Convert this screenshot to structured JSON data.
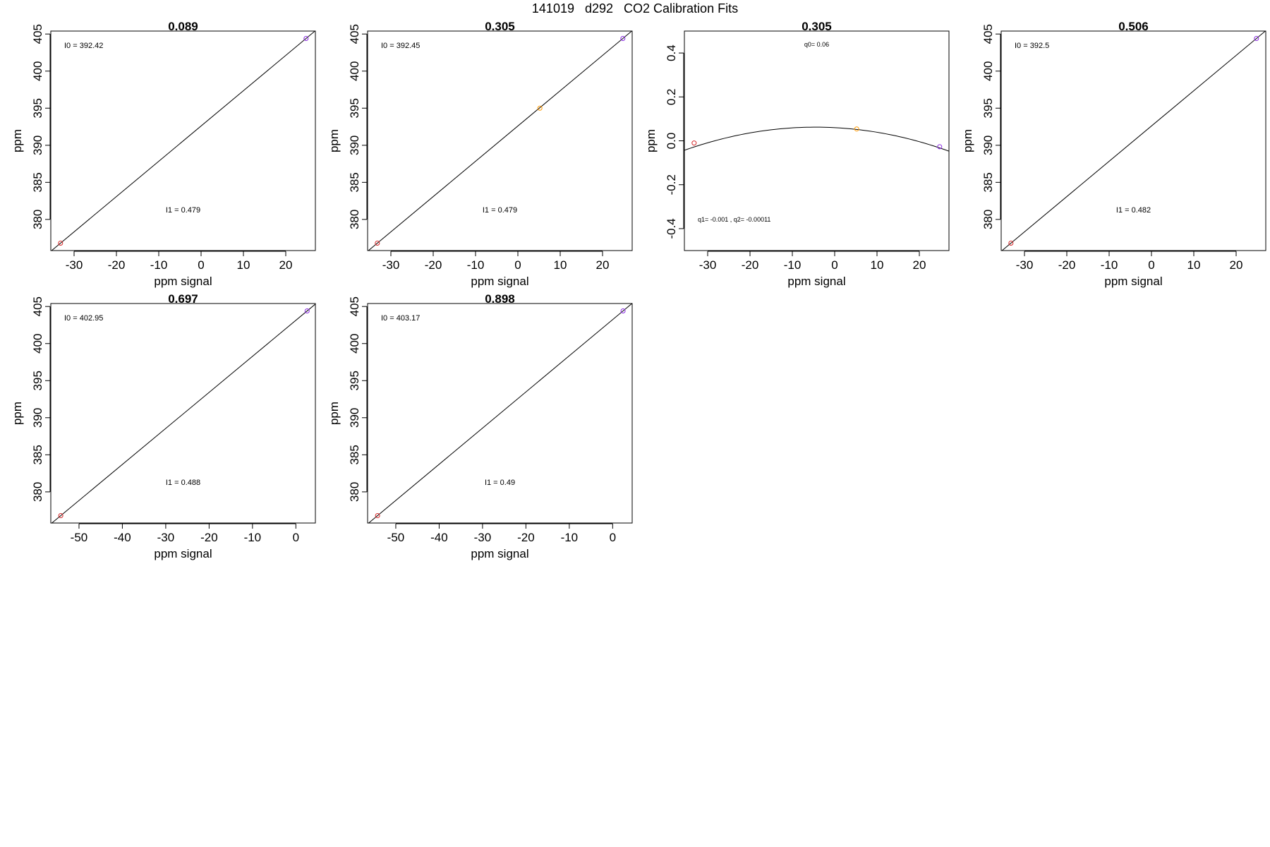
{
  "figure": {
    "title": "141019   d292   CO2 Calibration Fits"
  },
  "chart_data": [
    {
      "type": "scatter",
      "title": "0.089",
      "xlabel": "ppm signal",
      "ylabel": "ppm",
      "xlim": [
        -35.5,
        27
      ],
      "ylim": [
        375.8,
        405.4
      ],
      "xticks": [
        -30,
        -20,
        -10,
        0,
        10,
        20
      ],
      "yticks": [
        380,
        385,
        390,
        395,
        400,
        405
      ],
      "points": [
        {
          "x": -33.2,
          "y": 376.8,
          "color": "#d62728"
        },
        {
          "x": 24.8,
          "y": 404.4,
          "color": "#8a2be2"
        }
      ],
      "fit": {
        "kind": "linear",
        "intercept": 392.42,
        "slope": 0.479
      },
      "annotations": {
        "top": "I0 =  392.42",
        "bottom": "I1 =  0.479"
      }
    },
    {
      "type": "scatter",
      "title": "0.305",
      "xlabel": "ppm signal",
      "ylabel": "ppm",
      "xlim": [
        -35.5,
        27
      ],
      "ylim": [
        375.8,
        405.4
      ],
      "xticks": [
        -30,
        -20,
        -10,
        0,
        10,
        20
      ],
      "yticks": [
        380,
        385,
        390,
        395,
        400,
        405
      ],
      "points": [
        {
          "x": -33.2,
          "y": 376.8,
          "color": "#d62728"
        },
        {
          "x": 5.2,
          "y": 395.0,
          "color": "#ff9900"
        },
        {
          "x": 24.8,
          "y": 404.4,
          "color": "#8a2be2"
        }
      ],
      "fit": {
        "kind": "linear",
        "intercept": 392.45,
        "slope": 0.479
      },
      "annotations": {
        "top": "I0 =  392.45",
        "bottom": "I1 =  0.479"
      }
    },
    {
      "type": "scatter",
      "title": "0.305",
      "xlabel": "ppm signal",
      "ylabel": "ppm",
      "xlim": [
        -35.5,
        27
      ],
      "ylim": [
        -0.5,
        0.5
      ],
      "xticks": [
        -30,
        -20,
        -10,
        0,
        10,
        20
      ],
      "yticks": [
        -0.4,
        -0.2,
        0.0,
        0.2,
        0.4
      ],
      "ytick_labels": [
        "-0.4",
        "-0.2",
        "0.0",
        "0.2",
        "0.4"
      ],
      "points": [
        {
          "x": -33.2,
          "y": -0.01,
          "color": "#d62728"
        },
        {
          "x": 5.2,
          "y": 0.054,
          "color": "#ff9900"
        },
        {
          "x": 24.8,
          "y": -0.027,
          "color": "#8a2be2"
        }
      ],
      "fit": {
        "kind": "quadratic",
        "q0": 0.06,
        "q1": -0.001,
        "q2": -0.00011
      },
      "annotations": {
        "top": "q0= 0.06",
        "bottom": "q1= -0.001 , q2= -0.00011"
      }
    },
    {
      "type": "scatter",
      "title": "0.506",
      "xlabel": "ppm signal",
      "ylabel": "ppm",
      "xlim": [
        -35.5,
        27
      ],
      "ylim": [
        375.8,
        405.4
      ],
      "xticks": [
        -30,
        -20,
        -10,
        0,
        10,
        20
      ],
      "yticks": [
        380,
        385,
        390,
        395,
        400,
        405
      ],
      "points": [
        {
          "x": -33.2,
          "y": 376.8,
          "color": "#d62728"
        },
        {
          "x": 24.8,
          "y": 404.4,
          "color": "#8a2be2"
        }
      ],
      "fit": {
        "kind": "linear",
        "intercept": 392.5,
        "slope": 0.482
      },
      "annotations": {
        "top": "I0 =  392.5",
        "bottom": "I1 =  0.482"
      }
    },
    {
      "type": "scatter",
      "title": "0.697",
      "xlabel": "ppm signal",
      "ylabel": "ppm",
      "xlim": [
        -56.5,
        4.5
      ],
      "ylim": [
        375.8,
        405.4
      ],
      "xticks": [
        -50,
        -40,
        -30,
        -20,
        -10,
        0
      ],
      "yticks": [
        380,
        385,
        390,
        395,
        400,
        405
      ],
      "points": [
        {
          "x": -54.2,
          "y": 376.8,
          "color": "#d62728"
        },
        {
          "x": 2.6,
          "y": 404.4,
          "color": "#8a2be2"
        }
      ],
      "fit": {
        "kind": "linear",
        "intercept": 402.95,
        "slope": 0.488
      },
      "annotations": {
        "top": "I0 =  402.95",
        "bottom": "I1 =  0.488"
      }
    },
    {
      "type": "scatter",
      "title": "0.898",
      "xlabel": "ppm signal",
      "ylabel": "ppm",
      "xlim": [
        -56.5,
        4.5
      ],
      "ylim": [
        375.8,
        405.4
      ],
      "xticks": [
        -50,
        -40,
        -30,
        -20,
        -10,
        0
      ],
      "yticks": [
        380,
        385,
        390,
        395,
        400,
        405
      ],
      "points": [
        {
          "x": -54.2,
          "y": 376.8,
          "color": "#d62728"
        },
        {
          "x": 2.4,
          "y": 404.4,
          "color": "#8a2be2"
        }
      ],
      "fit": {
        "kind": "linear",
        "intercept": 403.17,
        "slope": 0.49
      },
      "annotations": {
        "top": "I0 =  403.17",
        "bottom": "I1 =  0.49"
      }
    }
  ]
}
